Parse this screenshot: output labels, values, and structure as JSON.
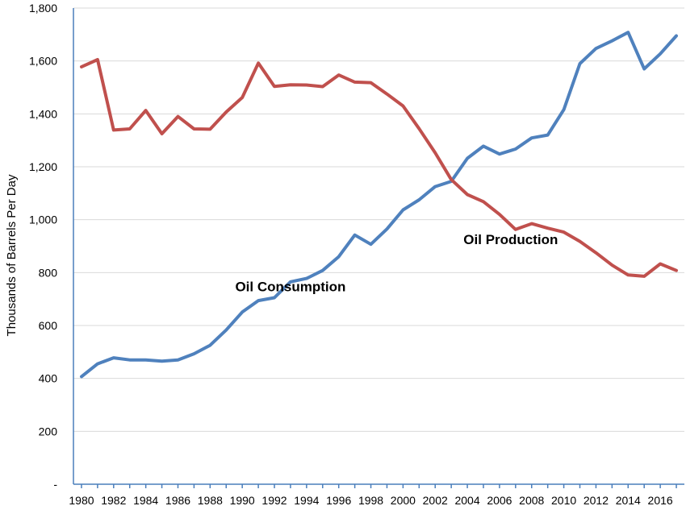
{
  "chart_data": {
    "type": "line",
    "ylabel": "Thousands of Barrels Per Day",
    "xlabel": "",
    "ylim": [
      0,
      1800
    ],
    "y_ticks": [
      0,
      200,
      400,
      600,
      800,
      1000,
      1200,
      1400,
      1600,
      1800
    ],
    "y_tick_labels": [
      "-",
      "200",
      "400",
      "600",
      "800",
      "1,000",
      "1,200",
      "1,400",
      "1,600",
      "1,800"
    ],
    "x_tick_labels": [
      "1980",
      "1982",
      "1984",
      "1986",
      "1988",
      "1990",
      "1992",
      "1994",
      "1996",
      "1998",
      "2000",
      "2002",
      "2004",
      "2006",
      "2008",
      "2010",
      "2012",
      "2014",
      "2016"
    ],
    "x": [
      1980,
      1981,
      1982,
      1983,
      1984,
      1985,
      1986,
      1987,
      1988,
      1989,
      1990,
      1991,
      1992,
      1993,
      1994,
      1995,
      1996,
      1997,
      1998,
      1999,
      2000,
      2001,
      2002,
      2003,
      2004,
      2005,
      2006,
      2007,
      2008,
      2009,
      2010,
      2011,
      2012,
      2013,
      2014,
      2015,
      2016,
      2017
    ],
    "grid": true,
    "legend": "none",
    "series": [
      {
        "color": "#4f81bd",
        "values": [
          407,
          455,
          478,
          470,
          470,
          465,
          470,
          493,
          525,
          583,
          651,
          694,
          705,
          765,
          778,
          808,
          860,
          942,
          907,
          965,
          1037,
          1075,
          1125,
          1145,
          1232,
          1278,
          1248,
          1267,
          1309,
          1320,
          1416,
          1590,
          1647,
          1676,
          1708,
          1570,
          1627,
          1695
        ]
      },
      {
        "color": "#c0504d",
        "values": [
          1578,
          1605,
          1339,
          1343,
          1413,
          1325,
          1390,
          1343,
          1342,
          1407,
          1462,
          1592,
          1504,
          1510,
          1509,
          1503,
          1547,
          1520,
          1518,
          1475,
          1430,
          1344,
          1253,
          1152,
          1095,
          1068,
          1020,
          963,
          985,
          968,
          953,
          918,
          875,
          828,
          791,
          786,
          833,
          808
        ]
      }
    ],
    "annotations": [
      {
        "text": "Oil Consumption",
        "x": 1993,
        "y": 730
      },
      {
        "text": "Oil Production",
        "x": 2006.7,
        "y": 908
      }
    ]
  }
}
